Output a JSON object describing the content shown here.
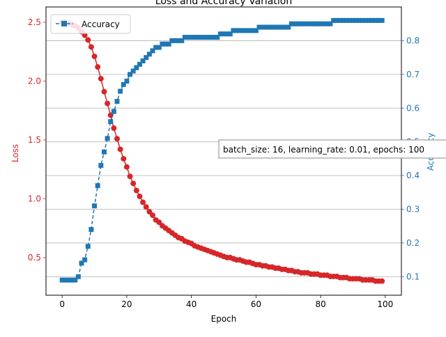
{
  "chart_data": {
    "type": "line",
    "title": "Loss and Accuracy Variation",
    "xlabel": "Epoch",
    "ylabel_left": "Loss",
    "ylabel_right": "Accuracy",
    "xlim": [
      -5,
      105
    ],
    "ylim_left": [
      0.18,
      2.63
    ],
    "ylim_right": [
      0.045,
      0.9
    ],
    "x_ticks": [
      0,
      20,
      40,
      60,
      80,
      100
    ],
    "y_ticks_left": [
      0.5,
      1.0,
      1.5,
      2.0,
      2.5
    ],
    "y_ticks_right": [
      0.1,
      0.2,
      0.3,
      0.4,
      0.5,
      0.6,
      0.7,
      0.8
    ],
    "grid": "horizontal lines at right-axis ticks",
    "legend_position": "upper-left",
    "annotation": "batch_size: 16, learning_rate: 0.01, epochs: 100",
    "colors": {
      "loss": "#d62728",
      "accuracy": "#1f77b4",
      "grid": "#b0b0b0"
    },
    "series": [
      {
        "axis": "left",
        "marker": "circle",
        "line": "solid",
        "x": [
          0,
          1,
          2,
          3,
          4,
          5,
          6,
          7,
          8,
          9,
          10,
          11,
          12,
          13,
          14,
          15,
          16,
          17,
          18,
          19,
          20,
          21,
          22,
          23,
          24,
          25,
          26,
          27,
          28,
          29,
          30,
          31,
          32,
          33,
          34,
          35,
          36,
          37,
          38,
          39,
          40,
          41,
          42,
          43,
          44,
          45,
          46,
          47,
          48,
          49,
          50,
          51,
          52,
          53,
          54,
          55,
          56,
          57,
          58,
          59,
          60,
          61,
          62,
          63,
          64,
          65,
          66,
          67,
          68,
          69,
          70,
          71,
          72,
          73,
          74,
          75,
          76,
          77,
          78,
          79,
          80,
          81,
          82,
          83,
          84,
          85,
          86,
          87,
          88,
          89,
          90,
          91,
          92,
          93,
          94,
          95,
          96,
          97,
          98,
          99
        ],
        "values": [
          2.5,
          2.5,
          2.49,
          2.48,
          2.47,
          2.45,
          2.42,
          2.39,
          2.35,
          2.29,
          2.21,
          2.12,
          2.02,
          1.91,
          1.81,
          1.71,
          1.6,
          1.51,
          1.42,
          1.34,
          1.27,
          1.19,
          1.13,
          1.07,
          1.02,
          0.97,
          0.93,
          0.89,
          0.86,
          0.82,
          0.8,
          0.77,
          0.75,
          0.73,
          0.71,
          0.69,
          0.67,
          0.66,
          0.64,
          0.63,
          0.62,
          0.6,
          0.59,
          0.58,
          0.57,
          0.56,
          0.55,
          0.54,
          0.53,
          0.52,
          0.51,
          0.5,
          0.5,
          0.49,
          0.48,
          0.48,
          0.47,
          0.46,
          0.46,
          0.45,
          0.44,
          0.44,
          0.43,
          0.43,
          0.42,
          0.42,
          0.41,
          0.41,
          0.4,
          0.4,
          0.39,
          0.39,
          0.38,
          0.38,
          0.37,
          0.37,
          0.37,
          0.36,
          0.36,
          0.36,
          0.35,
          0.35,
          0.35,
          0.34,
          0.34,
          0.34,
          0.33,
          0.33,
          0.33,
          0.32,
          0.32,
          0.32,
          0.32,
          0.31,
          0.31,
          0.31,
          0.31,
          0.3,
          0.3,
          0.3
        ]
      },
      {
        "name": "Accuracy",
        "axis": "right",
        "marker": "square",
        "line": "dashed",
        "x": [
          0,
          1,
          2,
          3,
          4,
          5,
          6,
          7,
          8,
          9,
          10,
          11,
          12,
          13,
          14,
          15,
          16,
          17,
          18,
          19,
          20,
          21,
          22,
          23,
          24,
          25,
          26,
          27,
          28,
          29,
          30,
          31,
          32,
          33,
          34,
          35,
          36,
          37,
          38,
          39,
          40,
          41,
          42,
          43,
          44,
          45,
          46,
          47,
          48,
          49,
          50,
          51,
          52,
          53,
          54,
          55,
          56,
          57,
          58,
          59,
          60,
          61,
          62,
          63,
          64,
          65,
          66,
          67,
          68,
          69,
          70,
          71,
          72,
          73,
          74,
          75,
          76,
          77,
          78,
          79,
          80,
          81,
          82,
          83,
          84,
          85,
          86,
          87,
          88,
          89,
          90,
          91,
          92,
          93,
          94,
          95,
          96,
          97,
          98,
          99
        ],
        "values": [
          0.09,
          0.09,
          0.09,
          0.09,
          0.09,
          0.1,
          0.14,
          0.15,
          0.19,
          0.24,
          0.31,
          0.37,
          0.43,
          0.47,
          0.51,
          0.56,
          0.59,
          0.62,
          0.65,
          0.67,
          0.68,
          0.7,
          0.71,
          0.72,
          0.73,
          0.74,
          0.75,
          0.76,
          0.77,
          0.78,
          0.78,
          0.79,
          0.79,
          0.79,
          0.8,
          0.8,
          0.8,
          0.8,
          0.81,
          0.81,
          0.81,
          0.81,
          0.81,
          0.81,
          0.81,
          0.81,
          0.81,
          0.81,
          0.81,
          0.82,
          0.82,
          0.82,
          0.82,
          0.83,
          0.83,
          0.83,
          0.83,
          0.83,
          0.83,
          0.83,
          0.83,
          0.84,
          0.84,
          0.84,
          0.84,
          0.84,
          0.84,
          0.84,
          0.84,
          0.84,
          0.84,
          0.85,
          0.85,
          0.85,
          0.85,
          0.85,
          0.85,
          0.85,
          0.85,
          0.85,
          0.85,
          0.85,
          0.85,
          0.85,
          0.86,
          0.86,
          0.86,
          0.86,
          0.86,
          0.86,
          0.86,
          0.86,
          0.86,
          0.86,
          0.86,
          0.86,
          0.86,
          0.86,
          0.86,
          0.86
        ]
      }
    ]
  }
}
